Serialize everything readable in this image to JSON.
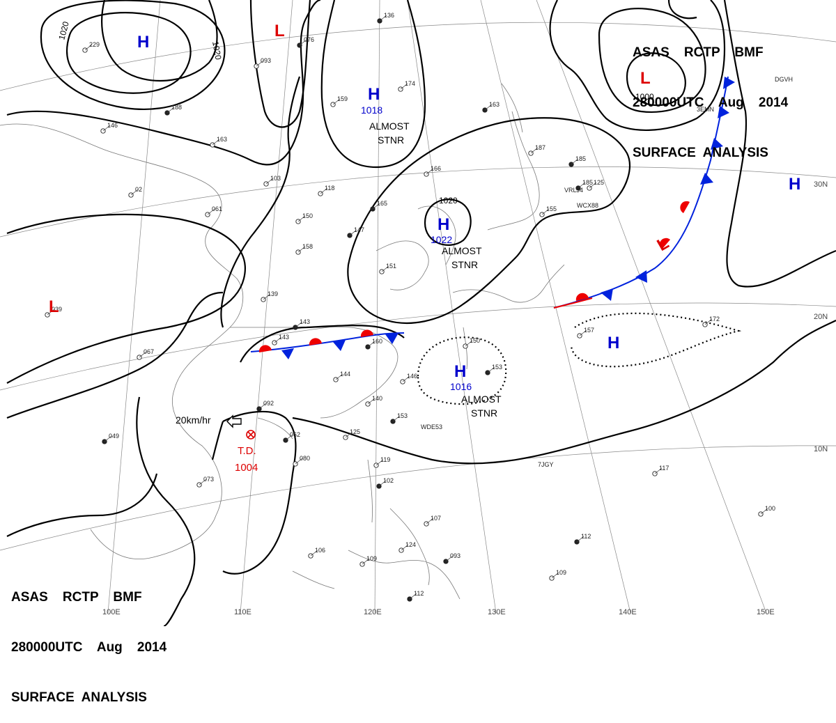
{
  "header": {
    "line1": "ASAS    RCTP    BMF",
    "line2": "280000UTC    Aug    2014",
    "line3": "SURFACE  ANALYSIS"
  },
  "graticule": {
    "longitudes": [
      "100E",
      "110E",
      "120E",
      "130E",
      "140E",
      "150E"
    ],
    "latitudes": [
      "10N",
      "20N",
      "30N"
    ]
  },
  "pressure_centers": [
    {
      "type": "H",
      "value": "",
      "color": "#0000cc"
    },
    {
      "type": "L",
      "value": "",
      "color": "#dd0000"
    },
    {
      "type": "H",
      "value": "1018",
      "color": "#0000cc"
    },
    {
      "type": "H",
      "value": "1022",
      "color": "#0000cc"
    },
    {
      "type": "L",
      "value": "",
      "color": "#dd0000"
    },
    {
      "type": "H",
      "value": "",
      "color": "#0000cc"
    },
    {
      "type": "H",
      "value": "",
      "color": "#0000cc"
    },
    {
      "type": "H",
      "value": "1016",
      "color": "#0000cc"
    },
    {
      "type": "L",
      "value": "",
      "color": "#dd0000"
    },
    {
      "type": "L",
      "value": "",
      "color": "#dd0000"
    }
  ],
  "annotations": {
    "almost": "ALMOST",
    "stnr": "STNR",
    "storm_motion": "20km/hr",
    "storm_type": "T.D.",
    "storm_pressure": "1004"
  },
  "isobar_labels": [
    "1020",
    "1020",
    "1020",
    "1000"
  ],
  "ship_codes": [
    "WCX88",
    "VRLJ4",
    "WDE53",
    "7JGY",
    "3EMN",
    "DGVH"
  ],
  "station_values": [
    "136",
    "229",
    "093",
    "076",
    "174",
    "159",
    "188",
    "146",
    "163",
    "163",
    "103",
    "118",
    "165",
    "166",
    "150",
    "147",
    "158",
    "139",
    "143",
    "143",
    "144",
    "160",
    "151",
    "150",
    "153",
    "157",
    "172",
    "185",
    "125",
    "067",
    "049",
    "073",
    "080",
    "092",
    "125",
    "119",
    "102",
    "146",
    "140",
    "153",
    "107",
    "124",
    "093",
    "106",
    "109",
    "112",
    "117",
    "100",
    "112",
    "109",
    "061",
    "062",
    "02",
    "039",
    "185",
    "187",
    "155"
  ],
  "colors": {
    "high": "#0000cc",
    "low": "#dd0000",
    "warm_front": "#ee0000",
    "cold_front": "#0022dd"
  }
}
